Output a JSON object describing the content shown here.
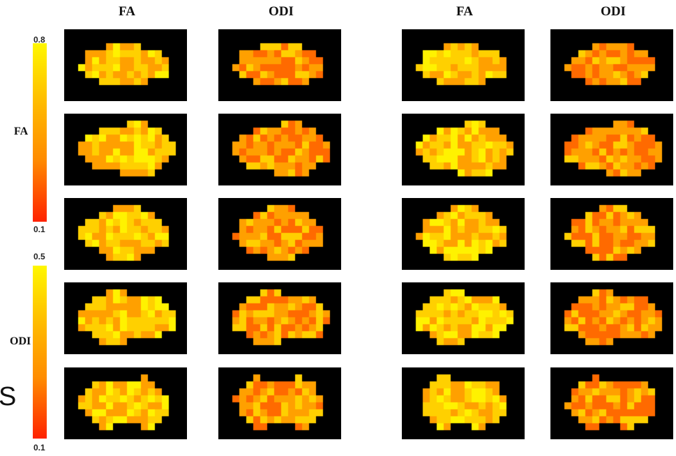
{
  "columns": [
    "FA",
    "ODI",
    "FA",
    "ODI"
  ],
  "fa_scale": {
    "label": "FA",
    "max": "0.8",
    "min": "0.1"
  },
  "odi_scale": {
    "label": "ODI",
    "max": "0.5",
    "min": "0.1"
  },
  "side_letter": "S",
  "colormap": [
    "#ff2a00",
    "#ff6a00",
    "#ffa000",
    "#ffd000",
    "#fff200"
  ]
}
